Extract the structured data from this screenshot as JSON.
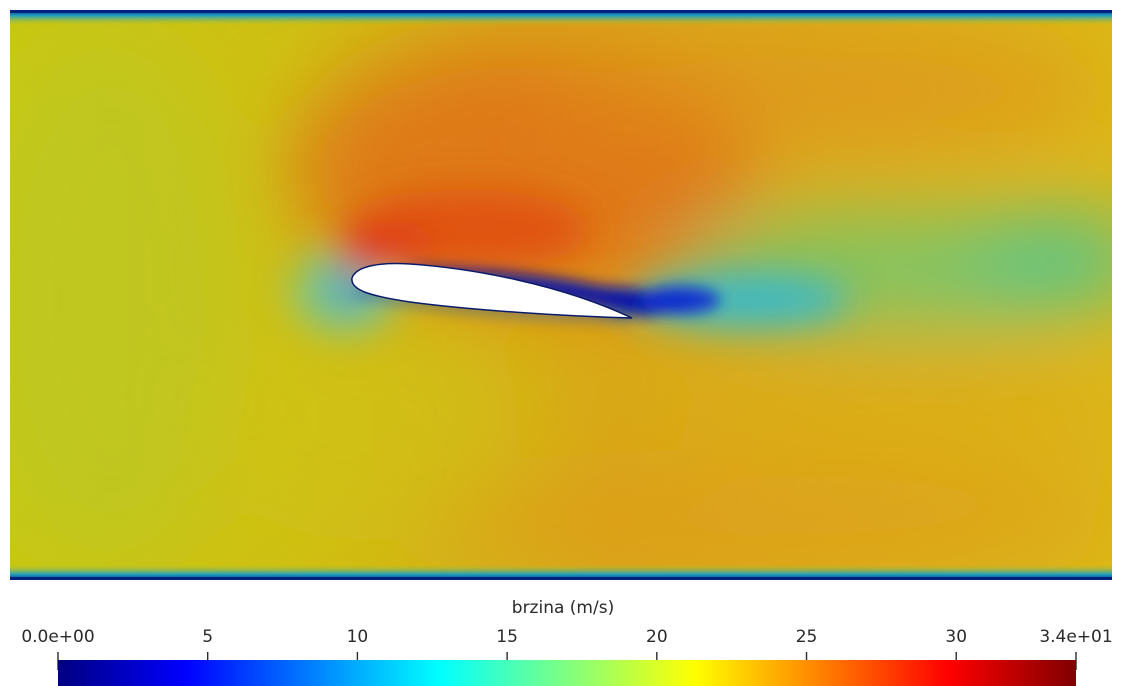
{
  "visualization": {
    "type": "flow-field-contour",
    "description_kind": "velocity magnitude around airfoil",
    "colormap": "jet",
    "colors": [
      "#00007f",
      "#0000ff",
      "#0080ff",
      "#00ffff",
      "#80ff80",
      "#ffff00",
      "#ff8000",
      "#ff0000",
      "#7f0000"
    ]
  },
  "colorbar": {
    "title": "brzina (m/s)",
    "range": [
      0,
      34
    ],
    "ticks": [
      {
        "value": 0,
        "label": "0.0e+00"
      },
      {
        "value": 5,
        "label": "5"
      },
      {
        "value": 10,
        "label": "10"
      },
      {
        "value": 15,
        "label": "15"
      },
      {
        "value": 20,
        "label": "20"
      },
      {
        "value": 25,
        "label": "25"
      },
      {
        "value": 30,
        "label": "30"
      },
      {
        "value": 34,
        "label": "3.4e+01"
      }
    ]
  }
}
